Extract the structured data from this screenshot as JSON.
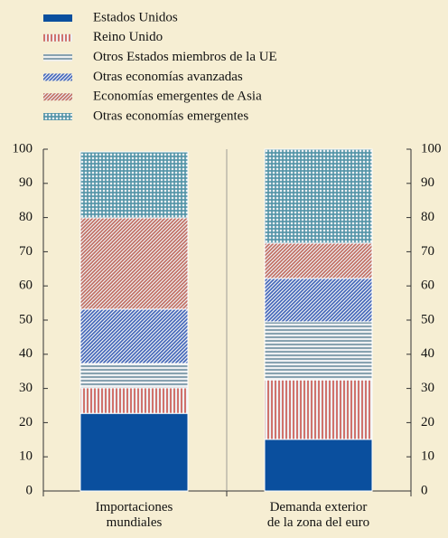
{
  "chart_data": {
    "type": "stacked_bar",
    "categories": [
      "Importaciones\nmundiales",
      "Demanda exterior\nde la zona del euro"
    ],
    "series": [
      {
        "name": "Estados Unidos",
        "color": "#0a4f9e",
        "values": [
          22.7,
          15.1
        ]
      },
      {
        "name": "Reino Unido",
        "color": "#c8534a",
        "values": [
          7.5,
          17.4
        ]
      },
      {
        "name": "Otros Estados miembros de la UE",
        "color": "#6f8fa0",
        "values": [
          7.1,
          17.0
        ]
      },
      {
        "name": "Otras economías avanzadas",
        "color": "#3f63b8",
        "values": [
          15.9,
          12.7
        ]
      },
      {
        "name": "Economías emergentes de Asia",
        "color": "#c06a5e",
        "values": [
          26.7,
          10.3
        ]
      },
      {
        "name": "Otras economías emergentes",
        "color": "#4f92a6",
        "values": [
          19.3,
          27.5
        ]
      }
    ],
    "ylim": [
      0,
      100
    ],
    "yticks": [
      0,
      10,
      20,
      30,
      40,
      50,
      60,
      70,
      80,
      90,
      100
    ]
  }
}
